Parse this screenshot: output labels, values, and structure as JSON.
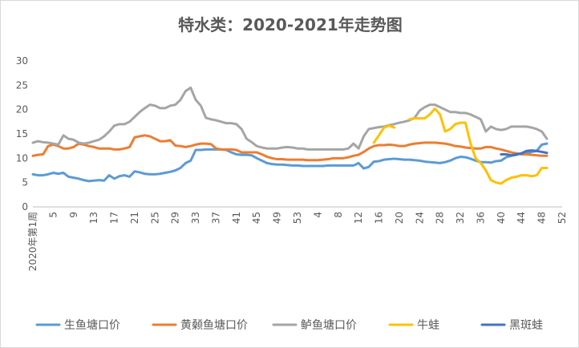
{
  "chart_data": {
    "type": "line",
    "title": "特水类：2020-2021年走势图",
    "ylim": [
      0,
      30
    ],
    "yticks": [
      0,
      5,
      10,
      15,
      20,
      25,
      30
    ],
    "x_tick_labels": [
      "2020年第1周",
      "5",
      "9",
      "13",
      "17",
      "21",
      "25",
      "29",
      "33",
      "37",
      "41",
      "45",
      "49",
      "53",
      "4",
      "8",
      "12",
      "16",
      "20",
      "24",
      "28",
      "32",
      "36",
      "40",
      "44",
      "48",
      "52"
    ],
    "grid": false,
    "legend_position": "bottom",
    "series": [
      {
        "name": "生鱼塘口价",
        "color": "#5B9BD5",
        "values": [
          6.7,
          6.5,
          6.5,
          6.7,
          7.0,
          6.8,
          7.0,
          6.2,
          6.0,
          5.8,
          5.5,
          5.3,
          5.4,
          5.5,
          5.4,
          6.5,
          5.8,
          6.3,
          6.5,
          6.2,
          7.3,
          7.1,
          6.8,
          6.7,
          6.7,
          6.8,
          7.0,
          7.2,
          7.5,
          8.0,
          9.0,
          9.5,
          11.7,
          11.7,
          11.8,
          11.8,
          11.8,
          11.8,
          11.7,
          11.2,
          10.8,
          10.7,
          10.7,
          10.6,
          10.0,
          9.5,
          9.0,
          8.8,
          8.7,
          8.7,
          8.6,
          8.5,
          8.5,
          8.4,
          8.4,
          8.4,
          8.4,
          8.4,
          8.5,
          8.5,
          8.5,
          8.5,
          8.5,
          8.5,
          9.0,
          7.9,
          8.2,
          9.3,
          9.4,
          9.7,
          9.8,
          9.9,
          9.8,
          9.7,
          9.7,
          9.6,
          9.5,
          9.3,
          9.2,
          9.1,
          9.0,
          9.2,
          9.5,
          10.0,
          10.3,
          10.2,
          9.9,
          9.5,
          9.2,
          9.2,
          9.1,
          9.4,
          9.5,
          10.2,
          10.5,
          10.7,
          11.0,
          11.0,
          11.3,
          11.5,
          12.8,
          13.0
        ]
      },
      {
        "name": "黄颡鱼塘口价",
        "color": "#ED7D31",
        "values": [
          10.5,
          10.7,
          10.8,
          12.5,
          12.8,
          12.5,
          12.0,
          12.0,
          12.3,
          13.0,
          12.8,
          12.5,
          12.3,
          12.0,
          12.0,
          12.0,
          11.8,
          11.8,
          12.0,
          12.3,
          14.3,
          14.5,
          14.7,
          14.5,
          14.0,
          13.5,
          13.5,
          13.7,
          12.6,
          12.5,
          12.3,
          12.5,
          12.8,
          13.0,
          13.0,
          12.9,
          12.0,
          11.8,
          11.8,
          11.8,
          11.7,
          11.2,
          11.2,
          11.2,
          11.2,
          10.8,
          10.3,
          10.0,
          9.8,
          9.8,
          9.7,
          9.7,
          9.7,
          9.7,
          9.6,
          9.6,
          9.6,
          9.7,
          9.8,
          10.0,
          10.0,
          10.0,
          10.2,
          10.5,
          10.7,
          11.3,
          12.0,
          12.5,
          12.7,
          12.7,
          12.8,
          12.7,
          12.5,
          12.5,
          12.8,
          13.0,
          13.1,
          13.2,
          13.2,
          13.2,
          13.1,
          13.0,
          12.8,
          12.5,
          12.4,
          12.2,
          12.1,
          12.0,
          12.0,
          12.3,
          12.3,
          12.0,
          11.8,
          11.5,
          11.2,
          11.0,
          10.8,
          10.8,
          10.7,
          10.6,
          10.5,
          10.5
        ]
      },
      {
        "name": "鲈鱼塘口价",
        "color": "#A5A5A5",
        "values": [
          13.2,
          13.5,
          13.3,
          13.2,
          13.0,
          12.8,
          14.7,
          14.0,
          13.8,
          13.2,
          13.0,
          13.2,
          13.5,
          13.8,
          14.5,
          15.5,
          16.7,
          17.0,
          17.0,
          17.5,
          18.5,
          19.5,
          20.3,
          21.0,
          20.8,
          20.3,
          20.3,
          20.8,
          21.0,
          22.0,
          23.8,
          24.5,
          22.0,
          20.8,
          18.3,
          18.0,
          17.8,
          17.5,
          17.2,
          17.2,
          17.0,
          16.0,
          14.0,
          13.3,
          12.5,
          12.2,
          12.0,
          12.0,
          12.0,
          12.2,
          12.3,
          12.2,
          12.0,
          12.0,
          11.8,
          11.8,
          11.8,
          11.8,
          11.8,
          11.8,
          11.8,
          11.8,
          12.0,
          13.0,
          12.0,
          14.5,
          16.0,
          16.2,
          16.4,
          16.5,
          16.8,
          17.0,
          17.3,
          17.5,
          17.8,
          18.3,
          19.8,
          20.5,
          21.0,
          21.0,
          20.5,
          20.0,
          19.5,
          19.5,
          19.3,
          19.3,
          19.0,
          18.5,
          18.0,
          15.5,
          16.5,
          16.0,
          15.8,
          16.0,
          16.5,
          16.5,
          16.5,
          16.5,
          16.3,
          16.0,
          15.5,
          14.0
        ]
      },
      {
        "name": "牛蛙",
        "color": "#FFC000",
        "values": [
          null,
          null,
          null,
          null,
          null,
          null,
          null,
          null,
          null,
          null,
          null,
          null,
          null,
          null,
          null,
          null,
          null,
          null,
          null,
          null,
          null,
          null,
          null,
          null,
          null,
          null,
          null,
          null,
          null,
          null,
          null,
          null,
          null,
          null,
          null,
          null,
          null,
          null,
          null,
          null,
          null,
          null,
          null,
          null,
          null,
          null,
          null,
          null,
          null,
          null,
          null,
          null,
          null,
          null,
          null,
          null,
          null,
          null,
          null,
          null,
          null,
          null,
          null,
          null,
          null,
          null,
          null,
          13.2,
          14.7,
          16.3,
          16.7,
          16.3,
          null,
          null,
          18.0,
          18.2,
          18.2,
          18.2,
          19.0,
          20.2,
          19.0,
          15.5,
          16.0,
          17.0,
          17.3,
          17.3,
          13.0,
          10.0,
          9.0,
          7.5,
          5.5,
          5.0,
          4.8,
          5.5,
          6.0,
          6.2,
          6.5,
          6.5,
          6.3,
          6.5,
          8.0,
          8.0
        ]
      },
      {
        "name": "黑斑蛙",
        "color": "#4472C4",
        "values": [
          null,
          null,
          null,
          null,
          null,
          null,
          null,
          null,
          null,
          null,
          null,
          null,
          null,
          null,
          null,
          null,
          null,
          null,
          null,
          null,
          null,
          null,
          null,
          null,
          null,
          null,
          null,
          null,
          null,
          null,
          null,
          null,
          null,
          null,
          null,
          null,
          null,
          null,
          null,
          null,
          null,
          null,
          null,
          null,
          null,
          null,
          null,
          null,
          null,
          null,
          null,
          null,
          null,
          null,
          null,
          null,
          null,
          null,
          null,
          null,
          null,
          null,
          null,
          null,
          null,
          null,
          null,
          null,
          null,
          null,
          null,
          null,
          null,
          null,
          null,
          null,
          null,
          null,
          null,
          null,
          null,
          null,
          null,
          null,
          null,
          null,
          null,
          null,
          null,
          null,
          null,
          null,
          10.8,
          10.8,
          10.6,
          10.8,
          11.0,
          11.5,
          11.6,
          11.5,
          11.3,
          11.1
        ]
      }
    ]
  }
}
